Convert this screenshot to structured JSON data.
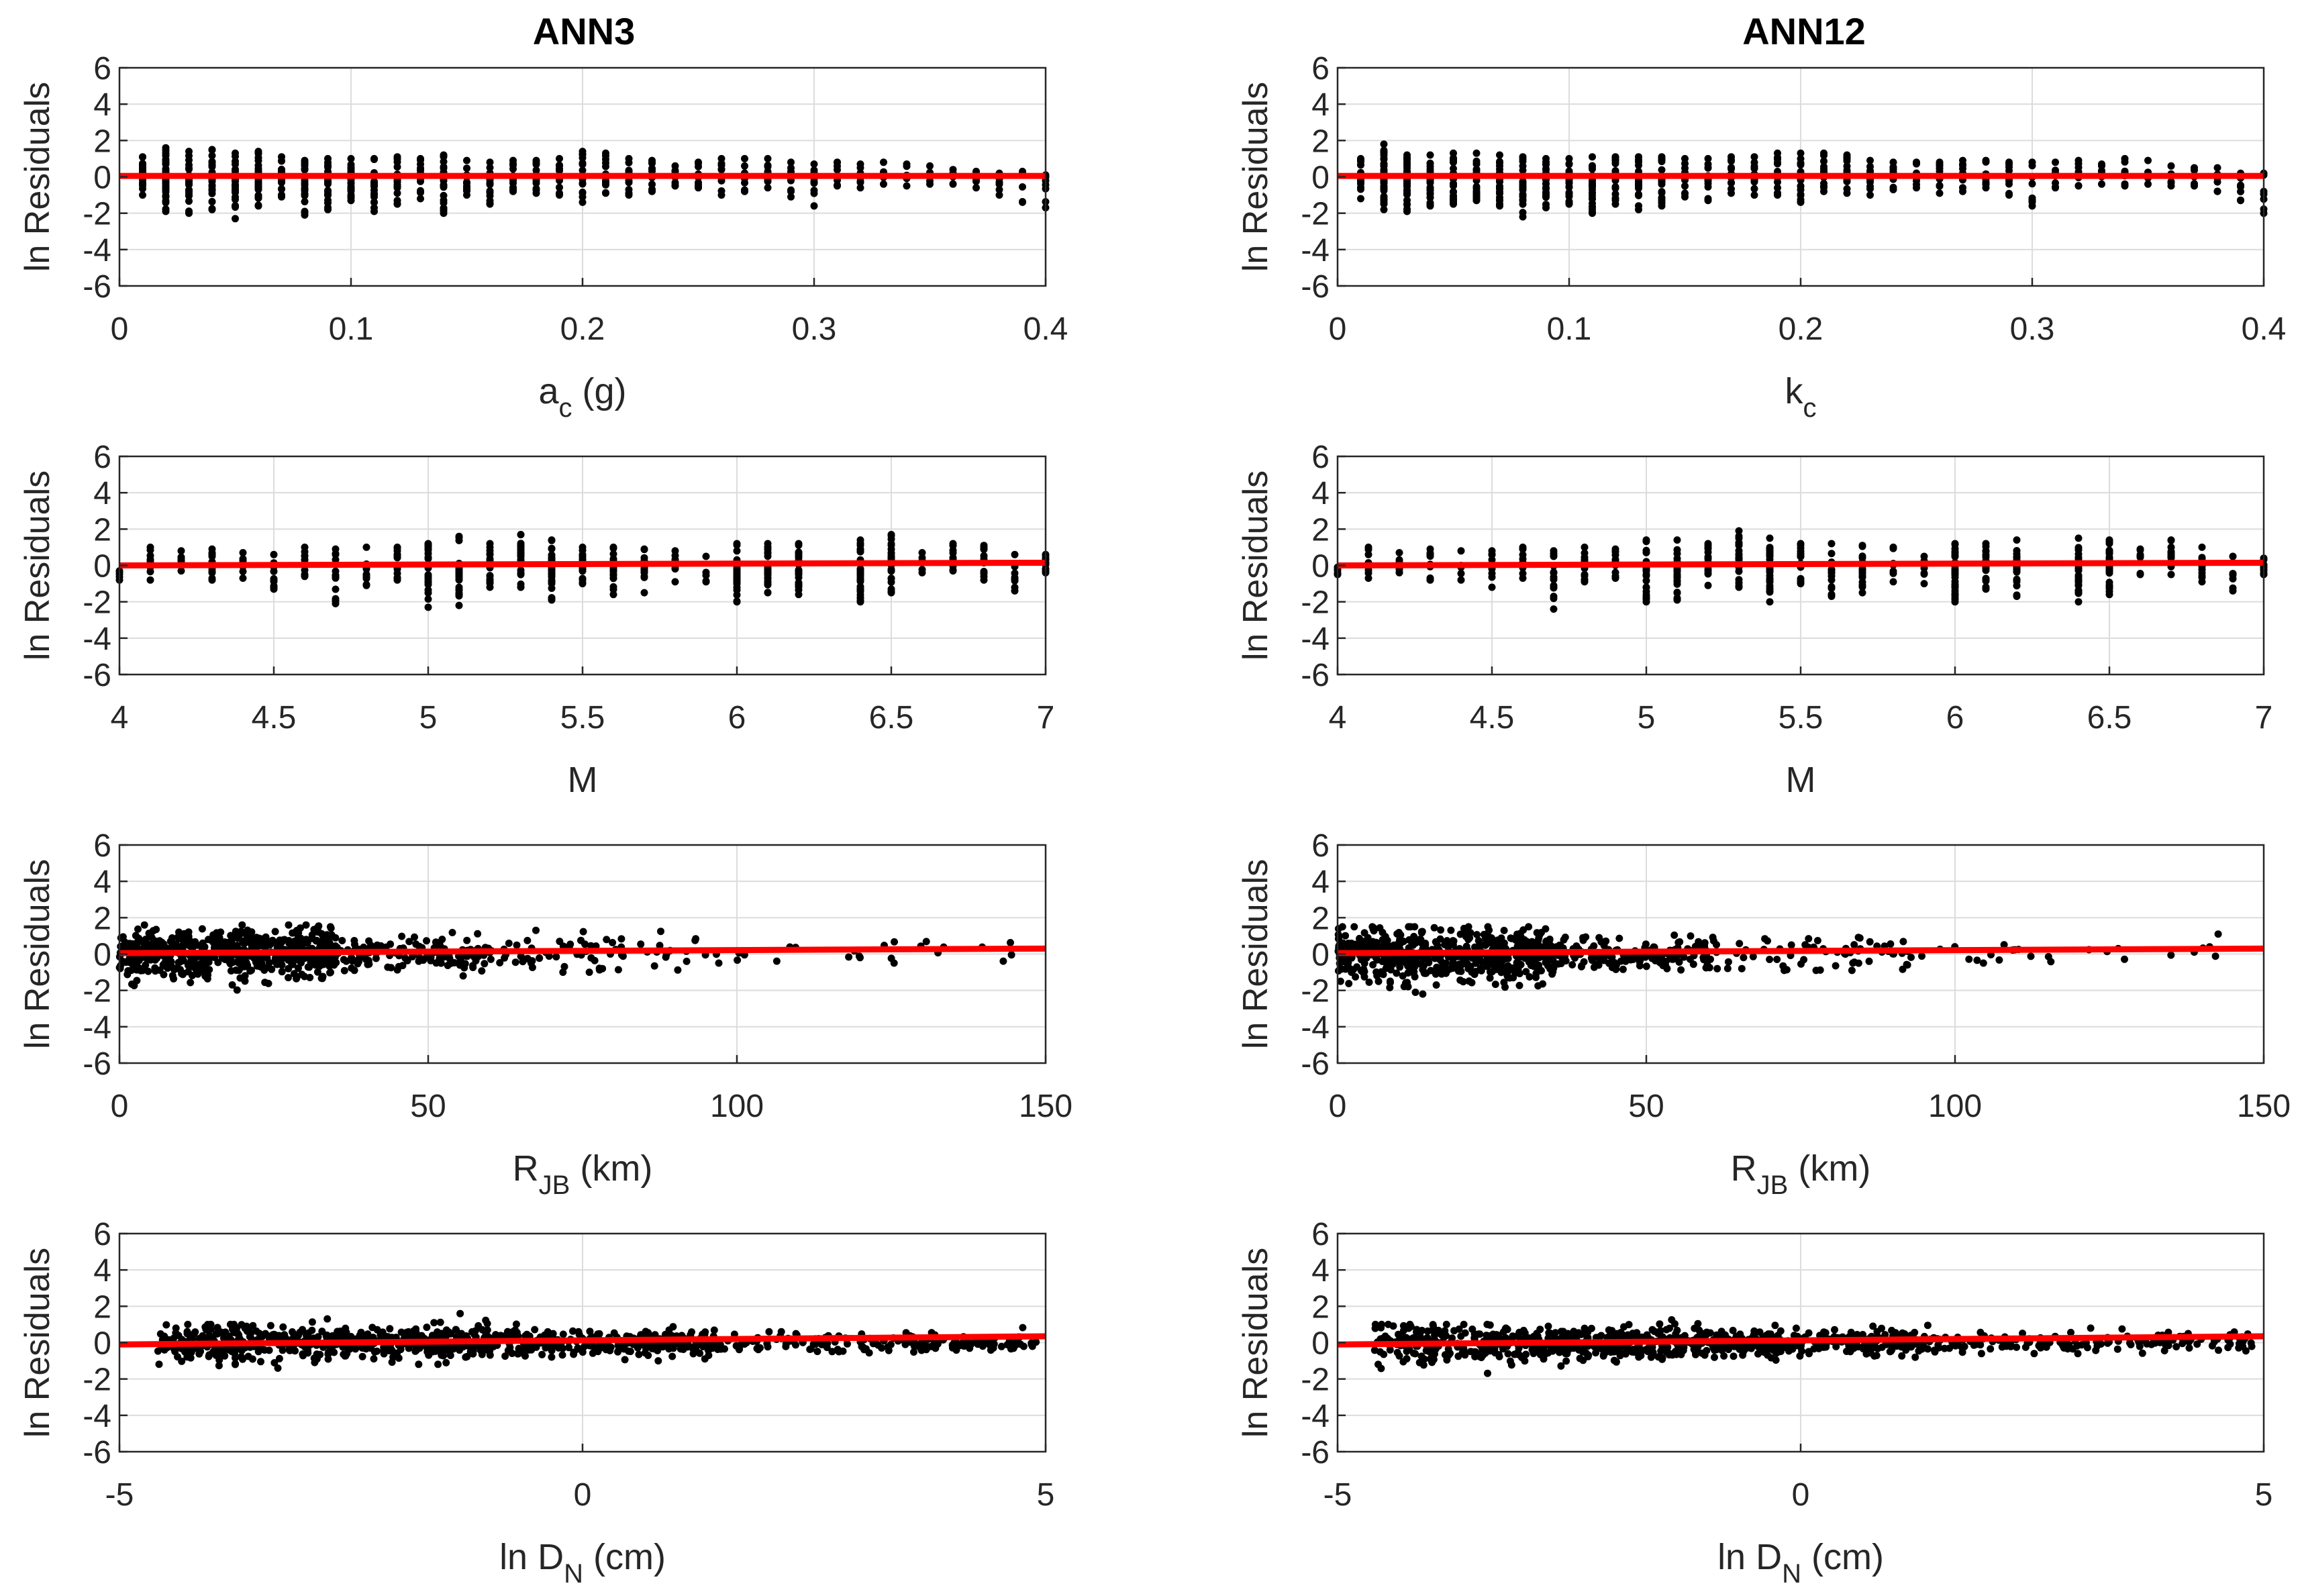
{
  "figure": {
    "column_titles": [
      "ANN3",
      "ANN12"
    ]
  },
  "colors": {
    "points": "#000000",
    "fit_line": "#ff0000",
    "grid": "#dcdcdc",
    "axes": "#262626"
  },
  "chart_data": [
    {
      "id": "ann3-ac",
      "type": "scatter",
      "title": "ANN3",
      "xlabel_main": "a",
      "xlabel_sub": "c",
      "xlabel_suffix": " (g)",
      "ylabel": "ln Residuals",
      "xlim": [
        0,
        0.4
      ],
      "ylim": [
        -6,
        6
      ],
      "xticks": [
        0,
        0.1,
        0.2,
        0.3,
        0.4
      ],
      "xtick_labels": [
        "0",
        "0.1",
        "0.2",
        "0.3",
        "0.4"
      ],
      "yticks": [
        -6,
        -4,
        -2,
        0,
        2,
        4,
        6
      ],
      "ytick_labels": [
        "-6",
        "-4",
        "-2",
        "0",
        "2",
        "4",
        "6"
      ],
      "pattern": "discrete",
      "xs": [
        0.01,
        0.02,
        0.03,
        0.04,
        0.05,
        0.06,
        0.07,
        0.08,
        0.09,
        0.1,
        0.11,
        0.12,
        0.13,
        0.14,
        0.15,
        0.16,
        0.17,
        0.18,
        0.19,
        0.2,
        0.21,
        0.22,
        0.23,
        0.24,
        0.25,
        0.26,
        0.27,
        0.28,
        0.29,
        0.3,
        0.31,
        0.32,
        0.33,
        0.34,
        0.35,
        0.36,
        0.37,
        0.38,
        0.39,
        0.4
      ],
      "ymin": [
        -1.0,
        -1.9,
        -2.0,
        -1.8,
        -2.3,
        -1.6,
        -1.1,
        -2.1,
        -1.8,
        -1.3,
        -1.9,
        -1.5,
        -1.2,
        -2.0,
        -1.0,
        -1.5,
        -0.8,
        -0.9,
        -1.0,
        -1.4,
        -0.9,
        -1.0,
        -0.8,
        -0.5,
        -0.6,
        -1.0,
        -0.8,
        -0.6,
        -1.1,
        -1.6,
        -0.5,
        -0.6,
        -0.4,
        -0.5,
        -0.4,
        -0.4,
        -0.6,
        -1.0,
        -1.4,
        -1.7
      ],
      "ymax": [
        1.1,
        1.6,
        1.4,
        1.5,
        1.3,
        1.4,
        1.1,
        0.9,
        1.0,
        1.0,
        1.0,
        1.1,
        1.0,
        1.2,
        0.9,
        0.8,
        0.9,
        0.9,
        1.0,
        1.4,
        1.3,
        1.0,
        0.9,
        0.6,
        0.8,
        1.0,
        1.0,
        1.0,
        0.8,
        0.7,
        0.8,
        0.7,
        0.8,
        0.7,
        0.6,
        0.4,
        0.3,
        0.2,
        0.3,
        0.1
      ],
      "n": [
        22,
        38,
        34,
        32,
        30,
        30,
        22,
        24,
        20,
        22,
        22,
        20,
        18,
        22,
        16,
        16,
        14,
        14,
        14,
        20,
        14,
        14,
        12,
        10,
        10,
        10,
        9,
        8,
        8,
        8,
        6,
        6,
        5,
        5,
        4,
        4,
        4,
        4,
        5,
        5
      ],
      "fit": {
        "x": [
          0,
          0.4
        ],
        "y": [
          0.05,
          0.05
        ]
      }
    },
    {
      "id": "ann12-kc",
      "type": "scatter",
      "title": "ANN12",
      "xlabel_main": "k",
      "xlabel_sub": "c",
      "xlabel_suffix": "",
      "ylabel": "ln Residuals",
      "xlim": [
        0,
        0.4
      ],
      "ylim": [
        -6,
        6
      ],
      "xticks": [
        0,
        0.1,
        0.2,
        0.3,
        0.4
      ],
      "xtick_labels": [
        "0",
        "0.1",
        "0.2",
        "0.3",
        "0.4"
      ],
      "yticks": [
        -6,
        -4,
        -2,
        0,
        2,
        4,
        6
      ],
      "ytick_labels": [
        "-6",
        "-4",
        "-2",
        "0",
        "2",
        "4",
        "6"
      ],
      "pattern": "discrete",
      "xs": [
        0.01,
        0.02,
        0.03,
        0.04,
        0.05,
        0.06,
        0.07,
        0.08,
        0.09,
        0.1,
        0.11,
        0.12,
        0.13,
        0.14,
        0.15,
        0.16,
        0.17,
        0.18,
        0.19,
        0.2,
        0.21,
        0.22,
        0.23,
        0.24,
        0.25,
        0.26,
        0.27,
        0.28,
        0.29,
        0.3,
        0.31,
        0.32,
        0.33,
        0.34,
        0.35,
        0.36,
        0.37,
        0.38,
        0.39,
        0.4
      ],
      "ymin": [
        -1.2,
        -1.8,
        -1.9,
        -1.6,
        -1.5,
        -1.3,
        -1.6,
        -2.2,
        -1.7,
        -1.5,
        -2.0,
        -1.5,
        -1.8,
        -1.6,
        -1.1,
        -1.3,
        -0.9,
        -1.0,
        -1.0,
        -1.4,
        -0.8,
        -0.9,
        -1.0,
        -0.7,
        -0.6,
        -0.9,
        -0.8,
        -0.6,
        -1.0,
        -1.6,
        -0.6,
        -0.5,
        -0.4,
        -0.5,
        -0.4,
        -0.5,
        -0.5,
        -0.8,
        -1.3,
        -2.0
      ],
      "ymax": [
        1.0,
        1.8,
        1.2,
        1.2,
        1.3,
        1.3,
        1.2,
        1.1,
        1.0,
        1.0,
        1.1,
        1.1,
        1.1,
        1.1,
        1.0,
        1.0,
        1.1,
        1.1,
        1.3,
        1.3,
        1.3,
        1.2,
        0.9,
        0.8,
        0.8,
        0.8,
        0.9,
        0.9,
        0.8,
        0.8,
        0.8,
        0.9,
        0.7,
        1.0,
        0.9,
        0.6,
        0.5,
        0.5,
        0.2,
        0.2
      ],
      "n": [
        22,
        38,
        34,
        32,
        30,
        30,
        22,
        24,
        20,
        22,
        22,
        20,
        18,
        22,
        16,
        16,
        14,
        14,
        14,
        20,
        14,
        14,
        12,
        10,
        10,
        10,
        9,
        8,
        8,
        8,
        6,
        6,
        5,
        5,
        4,
        4,
        4,
        4,
        5,
        5
      ],
      "fit": {
        "x": [
          0,
          0.4
        ],
        "y": [
          0.05,
          0.05
        ]
      }
    },
    {
      "id": "ann3-m",
      "type": "scatter",
      "title": "",
      "xlabel_main": "M",
      "xlabel_sub": "",
      "xlabel_suffix": "",
      "ylabel": "ln Residuals",
      "xlim": [
        4,
        7
      ],
      "ylim": [
        -6,
        6
      ],
      "xticks": [
        4,
        4.5,
        5,
        5.5,
        6,
        6.5,
        7
      ],
      "xtick_labels": [
        "4",
        "4.5",
        "5",
        "5.5",
        "6",
        "6.5",
        "7"
      ],
      "yticks": [
        -6,
        -4,
        -2,
        0,
        2,
        4,
        6
      ],
      "ytick_labels": [
        "-6",
        "-4",
        "-2",
        "0",
        "2",
        "4",
        "6"
      ],
      "pattern": "discrete",
      "xs": [
        4.0,
        4.1,
        4.2,
        4.3,
        4.4,
        4.5,
        4.6,
        4.7,
        4.8,
        4.9,
        5.0,
        5.1,
        5.2,
        5.3,
        5.4,
        5.5,
        5.6,
        5.7,
        5.8,
        5.9,
        6.0,
        6.1,
        6.2,
        6.4,
        6.5,
        6.6,
        6.7,
        6.8,
        6.9,
        7.0
      ],
      "ymin": [
        -0.8,
        -0.8,
        -0.3,
        -0.8,
        -0.7,
        -1.3,
        -0.6,
        -2.1,
        -1.1,
        -0.8,
        -2.3,
        -2.2,
        -1.2,
        -1.2,
        -1.9,
        -1.0,
        -1.6,
        -1.5,
        -0.9,
        -0.9,
        -2.0,
        -1.5,
        -1.6,
        -2.0,
        -1.5,
        -0.4,
        -0.3,
        -0.8,
        -1.4,
        -0.4
      ],
      "ymax": [
        -0.3,
        1.0,
        0.8,
        0.9,
        0.7,
        0.6,
        1.0,
        0.9,
        1.0,
        1.0,
        1.2,
        1.6,
        1.2,
        1.7,
        1.4,
        1.0,
        1.0,
        0.9,
        0.8,
        0.5,
        1.2,
        1.2,
        1.2,
        1.4,
        1.7,
        0.7,
        1.2,
        1.1,
        0.6,
        0.6
      ],
      "n": [
        3,
        8,
        6,
        10,
        5,
        12,
        10,
        14,
        12,
        12,
        22,
        28,
        16,
        24,
        30,
        16,
        18,
        16,
        6,
        4,
        28,
        24,
        24,
        28,
        26,
        6,
        10,
        10,
        6,
        10
      ],
      "fit": {
        "x": [
          4,
          7
        ],
        "y": [
          0.0,
          0.15
        ]
      }
    },
    {
      "id": "ann12-m",
      "type": "scatter",
      "title": "",
      "xlabel_main": "M",
      "xlabel_sub": "",
      "xlabel_suffix": "",
      "ylabel": "ln Residuals",
      "xlim": [
        4,
        7
      ],
      "ylim": [
        -6,
        6
      ],
      "xticks": [
        4,
        4.5,
        5,
        5.5,
        6,
        6.5,
        7
      ],
      "xtick_labels": [
        "4",
        "4.5",
        "5",
        "5.5",
        "6",
        "6.5",
        "7"
      ],
      "yticks": [
        -6,
        -4,
        -2,
        0,
        2,
        4,
        6
      ],
      "ytick_labels": [
        "-6",
        "-4",
        "-2",
        "0",
        "2",
        "4",
        "6"
      ],
      "pattern": "discrete",
      "xs": [
        4.0,
        4.1,
        4.2,
        4.3,
        4.4,
        4.5,
        4.6,
        4.7,
        4.8,
        4.9,
        5.0,
        5.1,
        5.2,
        5.3,
        5.4,
        5.5,
        5.6,
        5.7,
        5.8,
        5.9,
        6.0,
        6.1,
        6.2,
        6.4,
        6.5,
        6.6,
        6.7,
        6.8,
        6.9,
        7.0
      ],
      "ymin": [
        -0.5,
        -0.7,
        -0.4,
        -0.8,
        -0.8,
        -1.2,
        -0.7,
        -2.4,
        -0.9,
        -0.7,
        -2.0,
        -1.9,
        -1.1,
        -1.2,
        -2.0,
        -1.0,
        -1.7,
        -1.5,
        -0.9,
        -1.0,
        -2.0,
        -1.3,
        -1.7,
        -2.0,
        -1.6,
        -0.5,
        -0.5,
        -0.9,
        -1.4,
        -0.5
      ],
      "ymax": [
        -0.1,
        1.0,
        0.7,
        0.9,
        0.8,
        0.8,
        1.0,
        0.8,
        1.0,
        0.9,
        1.4,
        1.4,
        1.2,
        1.9,
        1.5,
        1.2,
        1.2,
        1.1,
        1.0,
        0.5,
        1.2,
        1.2,
        1.4,
        1.5,
        1.4,
        0.9,
        1.4,
        1.0,
        0.5,
        0.4
      ],
      "n": [
        3,
        8,
        6,
        10,
        5,
        12,
        10,
        14,
        12,
        12,
        22,
        28,
        16,
        24,
        30,
        16,
        18,
        16,
        6,
        4,
        28,
        24,
        24,
        28,
        26,
        6,
        10,
        10,
        6,
        10
      ],
      "fit": {
        "x": [
          4,
          7
        ],
        "y": [
          0.0,
          0.15
        ]
      }
    },
    {
      "id": "ann3-rjb",
      "type": "scatter",
      "title": "",
      "xlabel_main": "R",
      "xlabel_sub": "JB",
      "xlabel_suffix": " (km)",
      "ylabel": "ln Residuals",
      "xlim": [
        0,
        150
      ],
      "ylim": [
        -6,
        6
      ],
      "xticks": [
        0,
        50,
        100,
        150
      ],
      "xtick_labels": [
        "0",
        "50",
        "100",
        "150"
      ],
      "yticks": [
        -6,
        -4,
        -2,
        0,
        2,
        4,
        6
      ],
      "ytick_labels": [
        "-6",
        "-4",
        "-2",
        "0",
        "2",
        "4",
        "6"
      ],
      "pattern": "cloud",
      "bands": [
        {
          "x0": 0,
          "x1": 35,
          "sd": 0.7,
          "count": 560,
          "cap_lo": -2.2,
          "cap_hi": 1.6
        },
        {
          "x0": 35,
          "x1": 60,
          "sd": 0.45,
          "count": 140,
          "cap_lo": -1.2,
          "cap_hi": 1.2
        },
        {
          "x0": 60,
          "x1": 95,
          "sd": 0.5,
          "count": 70,
          "cap_lo": -1.0,
          "cap_hi": 1.8
        },
        {
          "x0": 95,
          "x1": 150,
          "sd": 0.4,
          "count": 24,
          "cap_lo": -0.5,
          "cap_hi": 1.1
        }
      ],
      "fit": {
        "x": [
          0,
          150
        ],
        "y": [
          0.05,
          0.3
        ]
      }
    },
    {
      "id": "ann12-rjb",
      "type": "scatter",
      "title": "",
      "xlabel_main": "R",
      "xlabel_sub": "JB",
      "xlabel_suffix": " (km)",
      "ylabel": "ln Residuals",
      "xlim": [
        0,
        150
      ],
      "ylim": [
        -6,
        6
      ],
      "xticks": [
        0,
        50,
        100,
        150
      ],
      "xtick_labels": [
        "0",
        "50",
        "100",
        "150"
      ],
      "yticks": [
        -6,
        -4,
        -2,
        0,
        2,
        4,
        6
      ],
      "ytick_labels": [
        "-6",
        "-4",
        "-2",
        "0",
        "2",
        "4",
        "6"
      ],
      "pattern": "cloud",
      "bands": [
        {
          "x0": 0,
          "x1": 35,
          "sd": 0.7,
          "count": 560,
          "cap_lo": -2.4,
          "cap_hi": 1.5
        },
        {
          "x0": 35,
          "x1": 60,
          "sd": 0.45,
          "count": 140,
          "cap_lo": -1.3,
          "cap_hi": 1.2
        },
        {
          "x0": 60,
          "x1": 95,
          "sd": 0.5,
          "count": 70,
          "cap_lo": -0.9,
          "cap_hi": 1.9
        },
        {
          "x0": 95,
          "x1": 150,
          "sd": 0.4,
          "count": 24,
          "cap_lo": -0.5,
          "cap_hi": 1.1
        }
      ],
      "fit": {
        "x": [
          0,
          150
        ],
        "y": [
          0.05,
          0.3
        ]
      }
    },
    {
      "id": "ann3-dn",
      "type": "scatter",
      "title": "",
      "xlabel_main": "ln D",
      "xlabel_sub": "N",
      "xlabel_suffix": " (cm)",
      "ylabel": "ln Residuals",
      "xlim": [
        -5,
        5
      ],
      "ylim": [
        -6,
        6
      ],
      "xticks": [
        -5,
        0,
        5
      ],
      "xtick_labels": [
        "-5",
        "0",
        "5"
      ],
      "yticks": [
        -6,
        -4,
        -2,
        0,
        2,
        4,
        6
      ],
      "ytick_labels": [
        "-6",
        "-4",
        "-2",
        "0",
        "2",
        "4",
        "6"
      ],
      "pattern": "cloud",
      "bands": [
        {
          "x0": -4.6,
          "x1": -3.0,
          "sd": 0.55,
          "count": 200,
          "cap_lo": -2.3,
          "cap_hi": 1.0
        },
        {
          "x0": -3.0,
          "x1": -1.0,
          "sd": 0.45,
          "count": 300,
          "cap_lo": -1.8,
          "cap_hi": 1.6
        },
        {
          "x0": -1.0,
          "x1": 1.5,
          "sd": 0.35,
          "count": 300,
          "cap_lo": -1.0,
          "cap_hi": 1.7
        },
        {
          "x0": 1.5,
          "x1": 4.9,
          "sd": 0.25,
          "count": 160,
          "cap_lo": -0.6,
          "cap_hi": 0.9
        }
      ],
      "fit": {
        "x": [
          -5,
          5
        ],
        "y": [
          -0.1,
          0.35
        ]
      }
    },
    {
      "id": "ann12-dn",
      "type": "scatter",
      "title": "",
      "xlabel_main": "ln D",
      "xlabel_sub": "N",
      "xlabel_suffix": " (cm)",
      "ylabel": "ln Residuals",
      "xlim": [
        -5,
        5
      ],
      "ylim": [
        -6,
        6
      ],
      "xticks": [
        -5,
        0,
        5
      ],
      "xtick_labels": [
        "-5",
        "0",
        "5"
      ],
      "yticks": [
        -6,
        -4,
        -2,
        0,
        2,
        4,
        6
      ],
      "ytick_labels": [
        "-6",
        "-4",
        "-2",
        "0",
        "2",
        "4",
        "6"
      ],
      "pattern": "cloud",
      "bands": [
        {
          "x0": -4.6,
          "x1": -3.0,
          "sd": 0.55,
          "count": 200,
          "cap_lo": -2.3,
          "cap_hi": 1.0
        },
        {
          "x0": -3.0,
          "x1": -1.0,
          "sd": 0.45,
          "count": 300,
          "cap_lo": -1.9,
          "cap_hi": 1.8
        },
        {
          "x0": -1.0,
          "x1": 1.5,
          "sd": 0.35,
          "count": 300,
          "cap_lo": -1.0,
          "cap_hi": 1.2
        },
        {
          "x0": 1.5,
          "x1": 4.9,
          "sd": 0.25,
          "count": 160,
          "cap_lo": -0.6,
          "cap_hi": 0.9
        }
      ],
      "fit": {
        "x": [
          -5,
          5
        ],
        "y": [
          -0.1,
          0.35
        ]
      }
    }
  ]
}
